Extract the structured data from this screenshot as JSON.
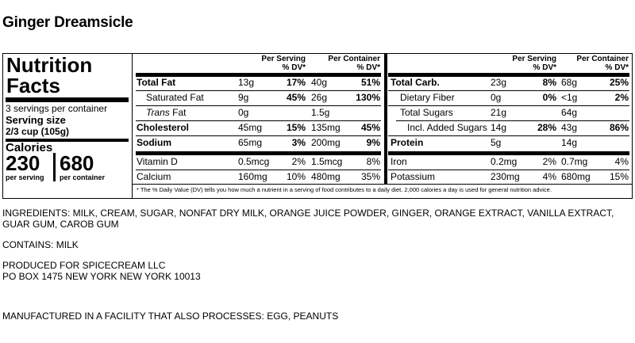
{
  "product_name": "Ginger Dreamsicle",
  "label": {
    "heading_line1": "Nutrition",
    "heading_line2": "Facts",
    "servings": "3 servings per container",
    "serving_size_label": "Serving size",
    "serving_size_value": "2/3 cup (105g)",
    "calories_label": "Calories",
    "calories_serving": "230",
    "calories_container": "680",
    "per_serving": "per serving",
    "per_container": "per container",
    "col_per_serving": [
      "Per Serving",
      "% DV*"
    ],
    "col_per_container": [
      "Per Container",
      "% DV*"
    ],
    "left_rows": [
      {
        "name": "Total Fat",
        "s_amt": "13g",
        "s_dv": "17%",
        "c_amt": "40g",
        "c_dv": "51%"
      },
      {
        "name": "Saturated Fat",
        "s_amt": "9g",
        "s_dv": "45%",
        "c_amt": "26g",
        "c_dv": "130%"
      },
      {
        "name_italic": "Trans",
        "name_rest": " Fat",
        "s_amt": "0g",
        "s_dv": "",
        "c_amt": "1.5g",
        "c_dv": ""
      },
      {
        "name": "Cholesterol",
        "s_amt": "45mg",
        "s_dv": "15%",
        "c_amt": "135mg",
        "c_dv": "45%"
      },
      {
        "name": "Sodium",
        "s_amt": "65mg",
        "s_dv": "3%",
        "c_amt": "200mg",
        "c_dv": "9%"
      },
      {
        "name": "Vitamin D",
        "s_amt": "0.5mcg",
        "s_dv": "2%",
        "c_amt": "1.5mcg",
        "c_dv": "8%"
      },
      {
        "name": "Calcium",
        "s_amt": "160mg",
        "s_dv": "10%",
        "c_amt": "480mg",
        "c_dv": "35%"
      }
    ],
    "right_rows": [
      {
        "name": "Total Carb.",
        "s_amt": "23g",
        "s_dv": "8%",
        "c_amt": "68g",
        "c_dv": "25%"
      },
      {
        "name": "Dietary Fiber",
        "s_amt": "0g",
        "s_dv": "0%",
        "c_amt": "<1g",
        "c_dv": "2%"
      },
      {
        "name": "Total Sugars",
        "s_amt": "21g",
        "s_dv": "",
        "c_amt": "64g",
        "c_dv": ""
      },
      {
        "name": "Incl. Added Sugars",
        "s_amt": "14g",
        "s_dv": "28%",
        "c_amt": "43g",
        "c_dv": "86%"
      },
      {
        "name": "Protein",
        "s_amt": "5g",
        "s_dv": "",
        "c_amt": "14g",
        "c_dv": ""
      },
      {
        "name": "Iron",
        "s_amt": "0.2mg",
        "s_dv": "2%",
        "c_amt": "0.7mg",
        "c_dv": "4%"
      },
      {
        "name": "Potassium",
        "s_amt": "230mg",
        "s_dv": "4%",
        "c_amt": "680mg",
        "c_dv": "15%"
      }
    ],
    "footnote": "* The % Daily Value (DV) tells you how much a nutrient in a serving of food contributes to a daily diet. 2,000 calories a day is used for general nutrition advice."
  },
  "ingredients": "INGREDIENTS: MILK, CREAM, SUGAR, NONFAT DRY MILK, ORANGE JUICE POWDER, GINGER, ORANGE EXTRACT, VANILLA EXTRACT, GUAR GUM, CAROB GUM",
  "contains": "CONTAINS: MILK",
  "produced_line1": "PRODUCED FOR SPICECREAM LLC",
  "produced_line2": "PO BOX 1475 NEW YORK NEW YORK 10013",
  "facility": "MANUFACTURED IN A FACILITY THAT ALSO PROCESSES: EGG, PEANUTS"
}
